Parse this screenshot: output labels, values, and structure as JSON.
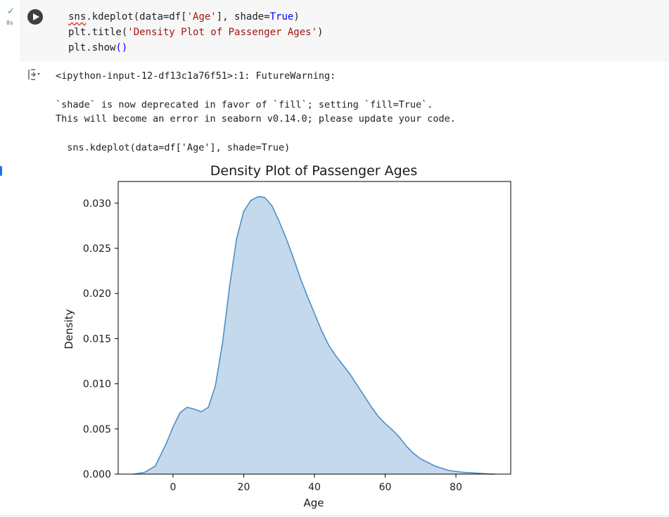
{
  "cell": {
    "status_icon": "check-icon",
    "exec_time": "0s",
    "run_icon": "play-icon",
    "code": [
      {
        "parts": [
          {
            "t": "sns",
            "c": "sq"
          },
          {
            "t": ".kdeplot(data=df[",
            "c": ""
          },
          {
            "t": "'Age'",
            "c": "str"
          },
          {
            "t": "], shade=",
            "c": ""
          },
          {
            "t": "True",
            "c": "kw"
          },
          {
            "t": ")",
            "c": ""
          }
        ]
      },
      {
        "parts": [
          {
            "t": "plt.title(",
            "c": ""
          },
          {
            "t": "'Density Plot of Passenger Ages'",
            "c": "str"
          },
          {
            "t": ")",
            "c": ""
          }
        ]
      },
      {
        "parts": [
          {
            "t": "plt.show",
            "c": ""
          },
          {
            "t": "()",
            "c": "kw"
          }
        ]
      }
    ]
  },
  "output": {
    "icon": "output-toggle-icon",
    "warning_header": "<ipython-input-12-df13c1a76f51>:1: FutureWarning:",
    "warning_line1": "`shade` is now deprecated in favor of `fill`; setting `fill=True`.",
    "warning_line2": "This will become an error in seaborn v0.14.0; please update your code.",
    "warning_code": "  sns.kdeplot(data=df['Age'], shade=True)"
  },
  "chart_data": {
    "type": "area",
    "title": "Density Plot of Passenger Ages",
    "xlabel": "Age",
    "ylabel": "Density",
    "xlim": [
      -15.5,
      95.5
    ],
    "ylim": [
      0,
      0.0324
    ],
    "xticks": [
      0,
      20,
      40,
      60,
      80
    ],
    "yticks": [
      0.0,
      0.005,
      0.01,
      0.015,
      0.02,
      0.025,
      0.03
    ],
    "ytick_labels": [
      "0.000",
      "0.005",
      "0.010",
      "0.015",
      "0.020",
      "0.025",
      "0.030"
    ],
    "line_color": "#4c8fc4",
    "fill_color": "#c5d9ec",
    "x": [
      -11,
      -8,
      -5,
      -2,
      0,
      2,
      4,
      6,
      8,
      10,
      12,
      14,
      16,
      18,
      20,
      22,
      24,
      25,
      26,
      28,
      30,
      32,
      34,
      36,
      38,
      40,
      42,
      44,
      46,
      48,
      50,
      52,
      54,
      56,
      58,
      60,
      62,
      64,
      66,
      68,
      70,
      74,
      78,
      82,
      86,
      90,
      91
    ],
    "y": [
      0.0,
      0.0002,
      0.0009,
      0.0033,
      0.0052,
      0.0068,
      0.0074,
      0.0072,
      0.0069,
      0.0074,
      0.0098,
      0.0145,
      0.0208,
      0.0261,
      0.0291,
      0.0303,
      0.0307,
      0.0307,
      0.0306,
      0.0297,
      0.028,
      0.0261,
      0.024,
      0.0217,
      0.0197,
      0.0178,
      0.0159,
      0.0143,
      0.0131,
      0.0121,
      0.0111,
      0.0099,
      0.0087,
      0.0075,
      0.0064,
      0.0056,
      0.0049,
      0.0041,
      0.0031,
      0.0023,
      0.0017,
      0.0009,
      0.0004,
      0.0002,
      0.0001,
      0.0,
      0.0
    ]
  }
}
